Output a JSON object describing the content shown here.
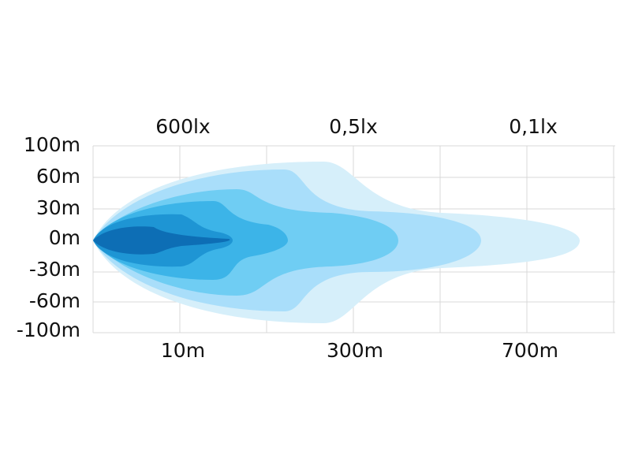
{
  "top_labels": [
    "600lx",
    "0,5lx",
    "0,1lx"
  ],
  "y_labels": [
    "100m",
    "60m",
    "30m",
    "0m",
    "-30m",
    "-60m",
    "-100m"
  ],
  "x_labels": [
    "10m",
    "300m",
    "700m"
  ]
}
